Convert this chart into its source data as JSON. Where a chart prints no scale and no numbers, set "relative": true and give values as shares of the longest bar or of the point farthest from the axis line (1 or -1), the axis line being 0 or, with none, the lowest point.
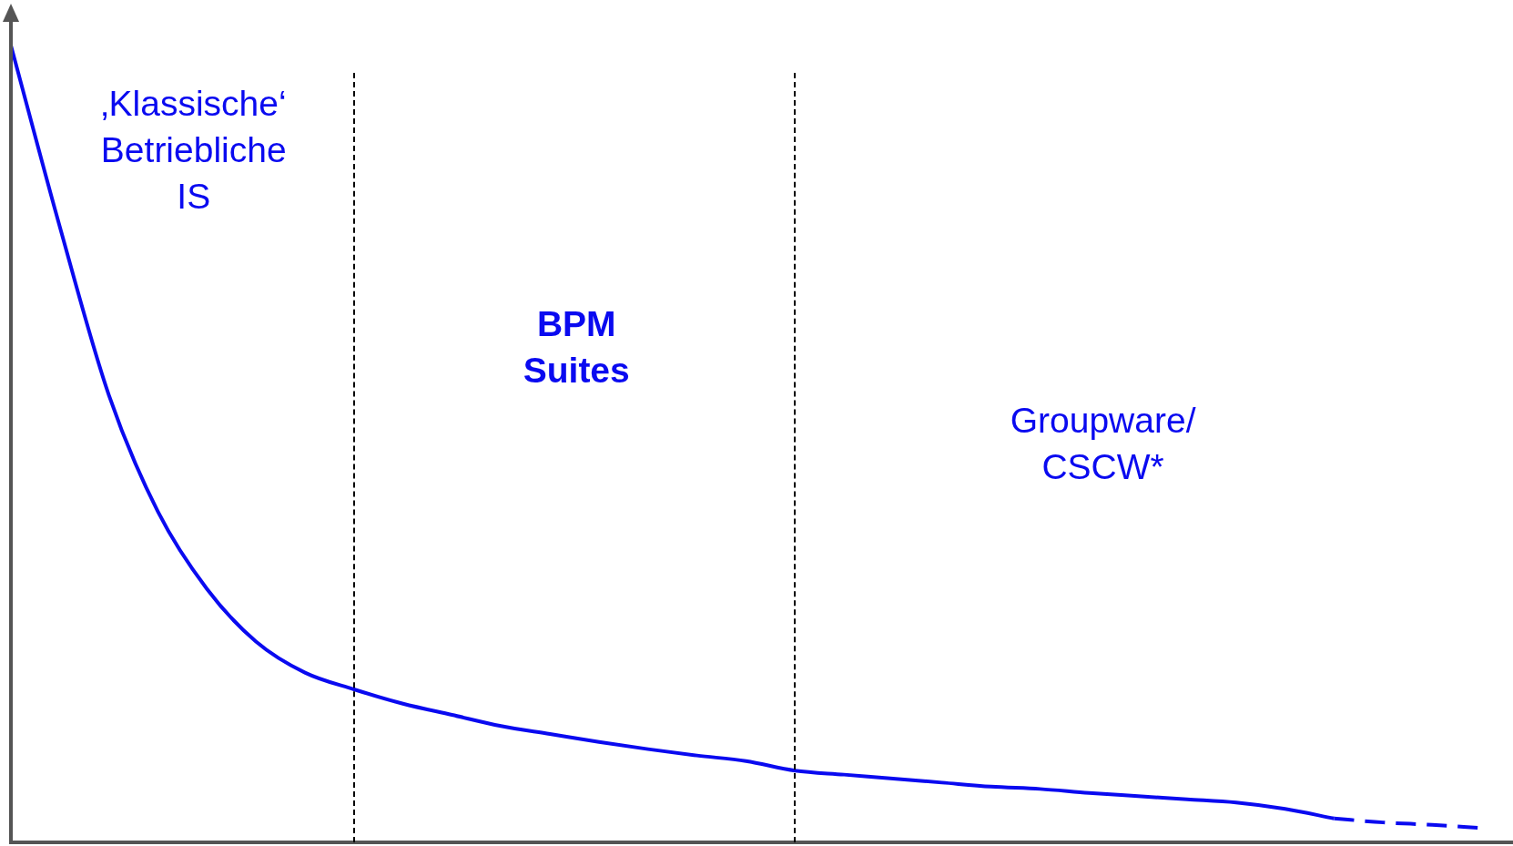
{
  "chart_data": {
    "type": "line",
    "relative": true,
    "legend": false,
    "marker": "none",
    "categories": [
      null,
      null,
      null,
      null,
      null,
      null,
      null,
      null,
      null,
      null,
      null,
      null,
      null,
      null,
      null,
      null,
      null,
      null,
      null,
      null,
      null,
      null,
      null,
      null,
      null,
      null,
      null,
      null,
      null,
      null,
      null
    ],
    "series": [
      {
        "color": "#0a0af0",
        "line_style": "solid",
        "values": [
          1.0,
          0.772,
          0.561,
          0.415,
          0.318,
          0.252,
          0.213,
          0.192,
          0.174,
          0.16,
          0.146,
          0.136,
          0.126,
          0.117,
          0.109,
          0.102,
          0.09,
          0.085,
          0.08,
          0.075,
          0.07,
          0.067,
          0.062,
          0.058,
          0.054,
          0.05,
          0.042,
          0.03,
          null,
          null,
          null
        ]
      },
      {
        "color": "#0a0af0",
        "line_style": "dashed",
        "values": [
          null,
          null,
          null,
          null,
          null,
          null,
          null,
          null,
          null,
          null,
          null,
          null,
          null,
          null,
          null,
          null,
          null,
          null,
          null,
          null,
          null,
          null,
          null,
          null,
          null,
          null,
          null,
          0.03,
          0.025,
          0.022,
          0.018
        ]
      }
    ],
    "annotations": [
      "‚Klassische‘\nBetriebliche\nIS",
      "BPM\nSuites",
      "Groupware/\nCSCW*"
    ]
  }
}
